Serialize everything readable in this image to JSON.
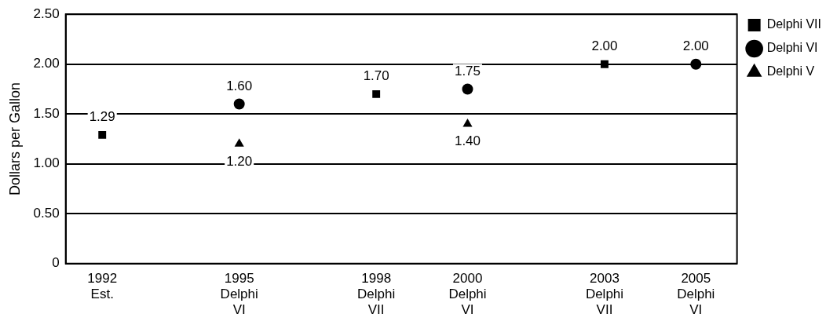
{
  "chart_data": {
    "type": "scatter",
    "ylabel": "Dollars per Gallon",
    "xlim": [
      1991.2,
      2005.9
    ],
    "xticks": [
      {
        "value": 1992,
        "label": "1992\nEst."
      },
      {
        "value": 1995,
        "label": "1995\nDelphi\nVI"
      },
      {
        "value": 1998,
        "label": "1998\nDelphi\nVII"
      },
      {
        "value": 2000,
        "label": "2000\nDelphi\nVI"
      },
      {
        "value": 2003,
        "label": "2003\nDelphi\nVII"
      },
      {
        "value": 2005,
        "label": "2005\nDelphi\nVI"
      }
    ],
    "ylim": [
      0,
      2.5
    ],
    "yticks": [
      {
        "value": 0,
        "label": "0"
      },
      {
        "value": 0.5,
        "label": "0.50"
      },
      {
        "value": 1,
        "label": "1.00"
      },
      {
        "value": 1.5,
        "label": "1.50"
      },
      {
        "value": 2,
        "label": "2.00"
      },
      {
        "value": 2.5,
        "label": "2.50"
      }
    ],
    "grid": "y",
    "legend": "right",
    "series": [
      {
        "name": "Delphi VII",
        "color": "#000000",
        "marker": "square",
        "x": [
          1992,
          1998,
          2003
        ],
        "values": [
          1.29,
          1.7,
          2.0
        ],
        "value_labels": [
          "1.29",
          "1.70",
          "2.00"
        ]
      },
      {
        "name": "Delphi VI",
        "color": "#000000",
        "marker": "circle",
        "x": [
          1995,
          2000,
          2005
        ],
        "values": [
          1.6,
          1.75,
          2.0
        ],
        "value_labels": [
          "1.60",
          "1.75",
          "2.00"
        ]
      },
      {
        "name": "Delphi V",
        "color": "#000000",
        "marker": "triangle",
        "x": [
          1995,
          2000
        ],
        "values": [
          1.2,
          1.4
        ],
        "value_labels": [
          "1.20",
          "1.40"
        ]
      }
    ]
  }
}
